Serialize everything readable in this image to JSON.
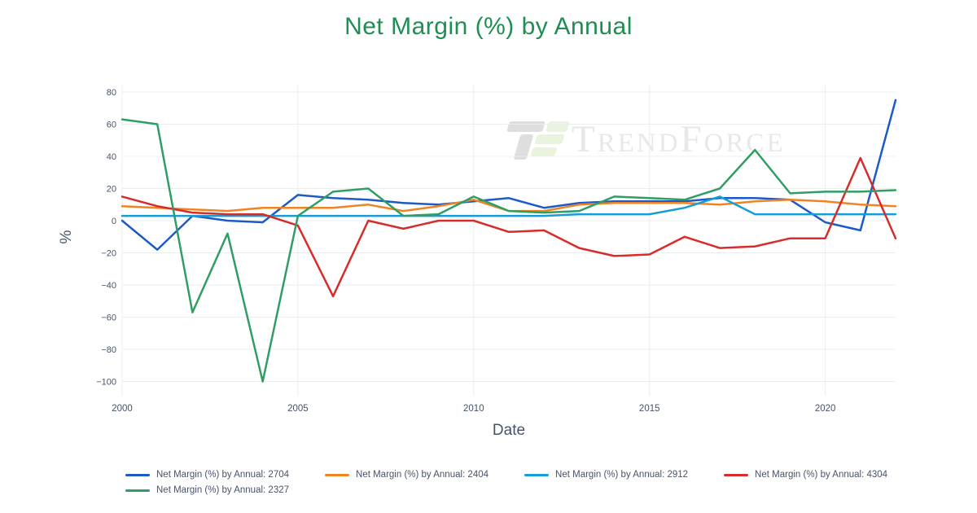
{
  "chart_data": {
    "type": "line",
    "title": "Net Margin (%) by Annual",
    "xlabel": "Date",
    "ylabel": "%",
    "x": [
      2000,
      2001,
      2002,
      2003,
      2004,
      2005,
      2006,
      2007,
      2008,
      2009,
      2010,
      2011,
      2012,
      2013,
      2014,
      2015,
      2016,
      2017,
      2018,
      2019,
      2020,
      2021,
      2022
    ],
    "series": [
      {
        "name": "Net Margin (%) by Annual: 2704",
        "color": "#1e5ac6",
        "values": [
          0,
          -18,
          3,
          0,
          -1,
          16,
          14,
          13,
          11,
          10,
          12,
          14,
          8,
          11,
          12,
          12,
          12,
          14,
          14,
          13,
          -1,
          -6,
          75
        ]
      },
      {
        "name": "Net Margin (%) by Annual: 2404",
        "color": "#f08423",
        "values": [
          9,
          8,
          7,
          6,
          8,
          8,
          8,
          10,
          6,
          9,
          13,
          6,
          6,
          10,
          11,
          11,
          11,
          10,
          12,
          13,
          12,
          10,
          9
        ]
      },
      {
        "name": "Net Margin (%) by Annual: 2912",
        "color": "#149ed6",
        "values": [
          3,
          3,
          3,
          3,
          3,
          3,
          3,
          3,
          3,
          3,
          3,
          3,
          3,
          4,
          4,
          4,
          8,
          15,
          4,
          4,
          4,
          4,
          4
        ]
      },
      {
        "name": "Net Margin (%) by Annual: 4304",
        "color": "#d62c2a",
        "values": [
          15,
          9,
          5,
          4,
          4,
          -3,
          -47,
          0,
          -5,
          0,
          0,
          -7,
          -6,
          -17,
          -22,
          -21,
          -10,
          -17,
          -16,
          -11,
          -11,
          39,
          -11
        ]
      },
      {
        "name": "Net Margin (%) by Annual: 2327",
        "color": "#309e64",
        "values": [
          63,
          60,
          -57,
          -8,
          -100,
          3,
          18,
          20,
          3,
          4,
          15,
          6,
          5,
          6,
          15,
          14,
          13,
          20,
          44,
          17,
          18,
          18,
          19
        ]
      }
    ],
    "ylim": [
      -100,
      80
    ],
    "yticks": [
      80,
      60,
      40,
      20,
      0,
      -20,
      -40,
      -60,
      -80,
      -100
    ],
    "xticks": [
      2000,
      2005,
      2010,
      2015,
      2020
    ],
    "grid": true,
    "legend_position": "bottom",
    "colors": {
      "title": "#1e8e52",
      "axis_text": "#47536b",
      "gridline": "#ebecef"
    }
  },
  "watermark": {
    "text": "TrendForce"
  }
}
